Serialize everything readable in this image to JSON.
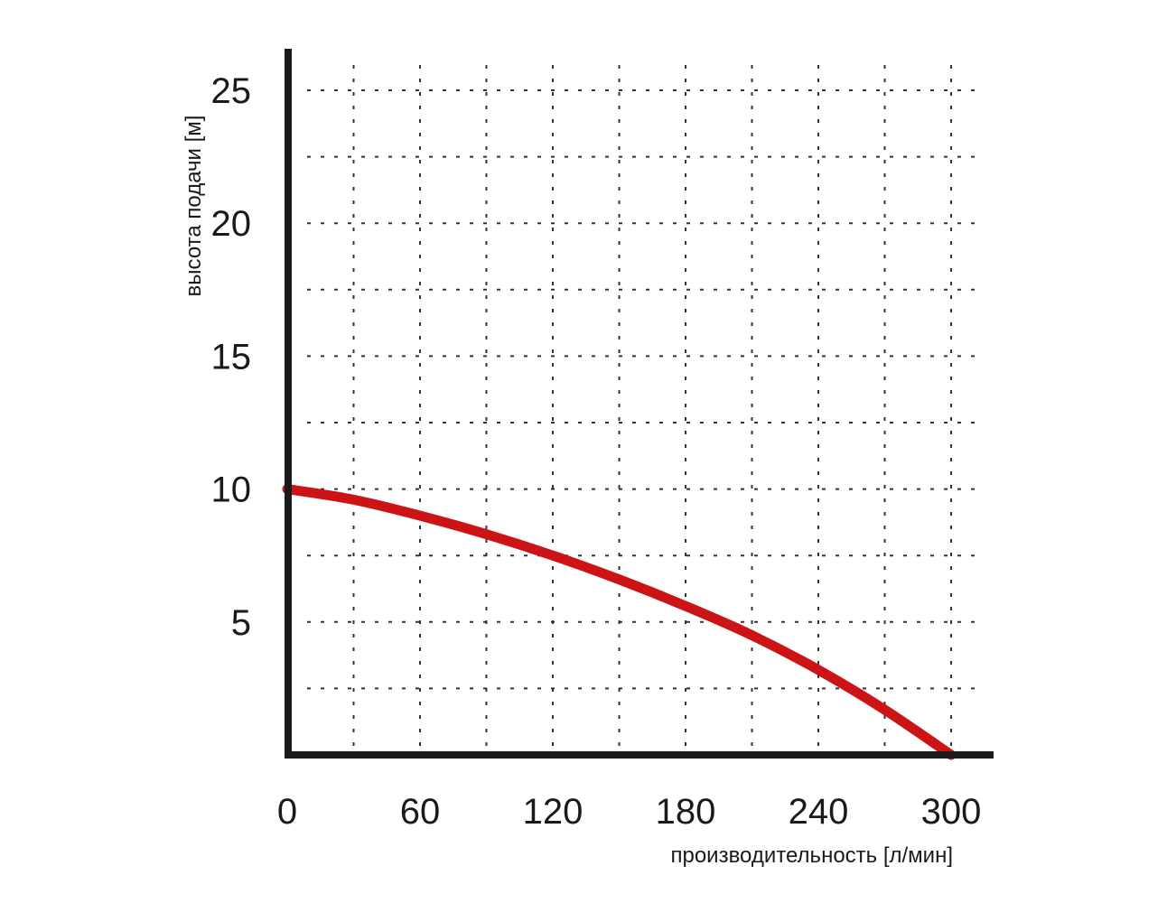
{
  "chart_data": {
    "type": "line",
    "title": "",
    "xlabel": "производительность [л/мин]",
    "ylabel": "высота подачи [м]",
    "x_ticks": [
      "0",
      "60",
      "120",
      "180",
      "240",
      "300"
    ],
    "y_ticks": [
      "5",
      "10",
      "15",
      "20",
      "25"
    ],
    "xlim": [
      0,
      320
    ],
    "ylim": [
      0,
      27
    ],
    "grid": true,
    "series": [
      {
        "color": "#cc1417",
        "x": [
          0,
          30,
          60,
          90,
          120,
          150,
          180,
          210,
          240,
          270,
          300
        ],
        "y": [
          10.0,
          9.6,
          9.0,
          8.3,
          7.5,
          6.6,
          5.6,
          4.5,
          3.2,
          1.7,
          0.0
        ]
      }
    ]
  }
}
